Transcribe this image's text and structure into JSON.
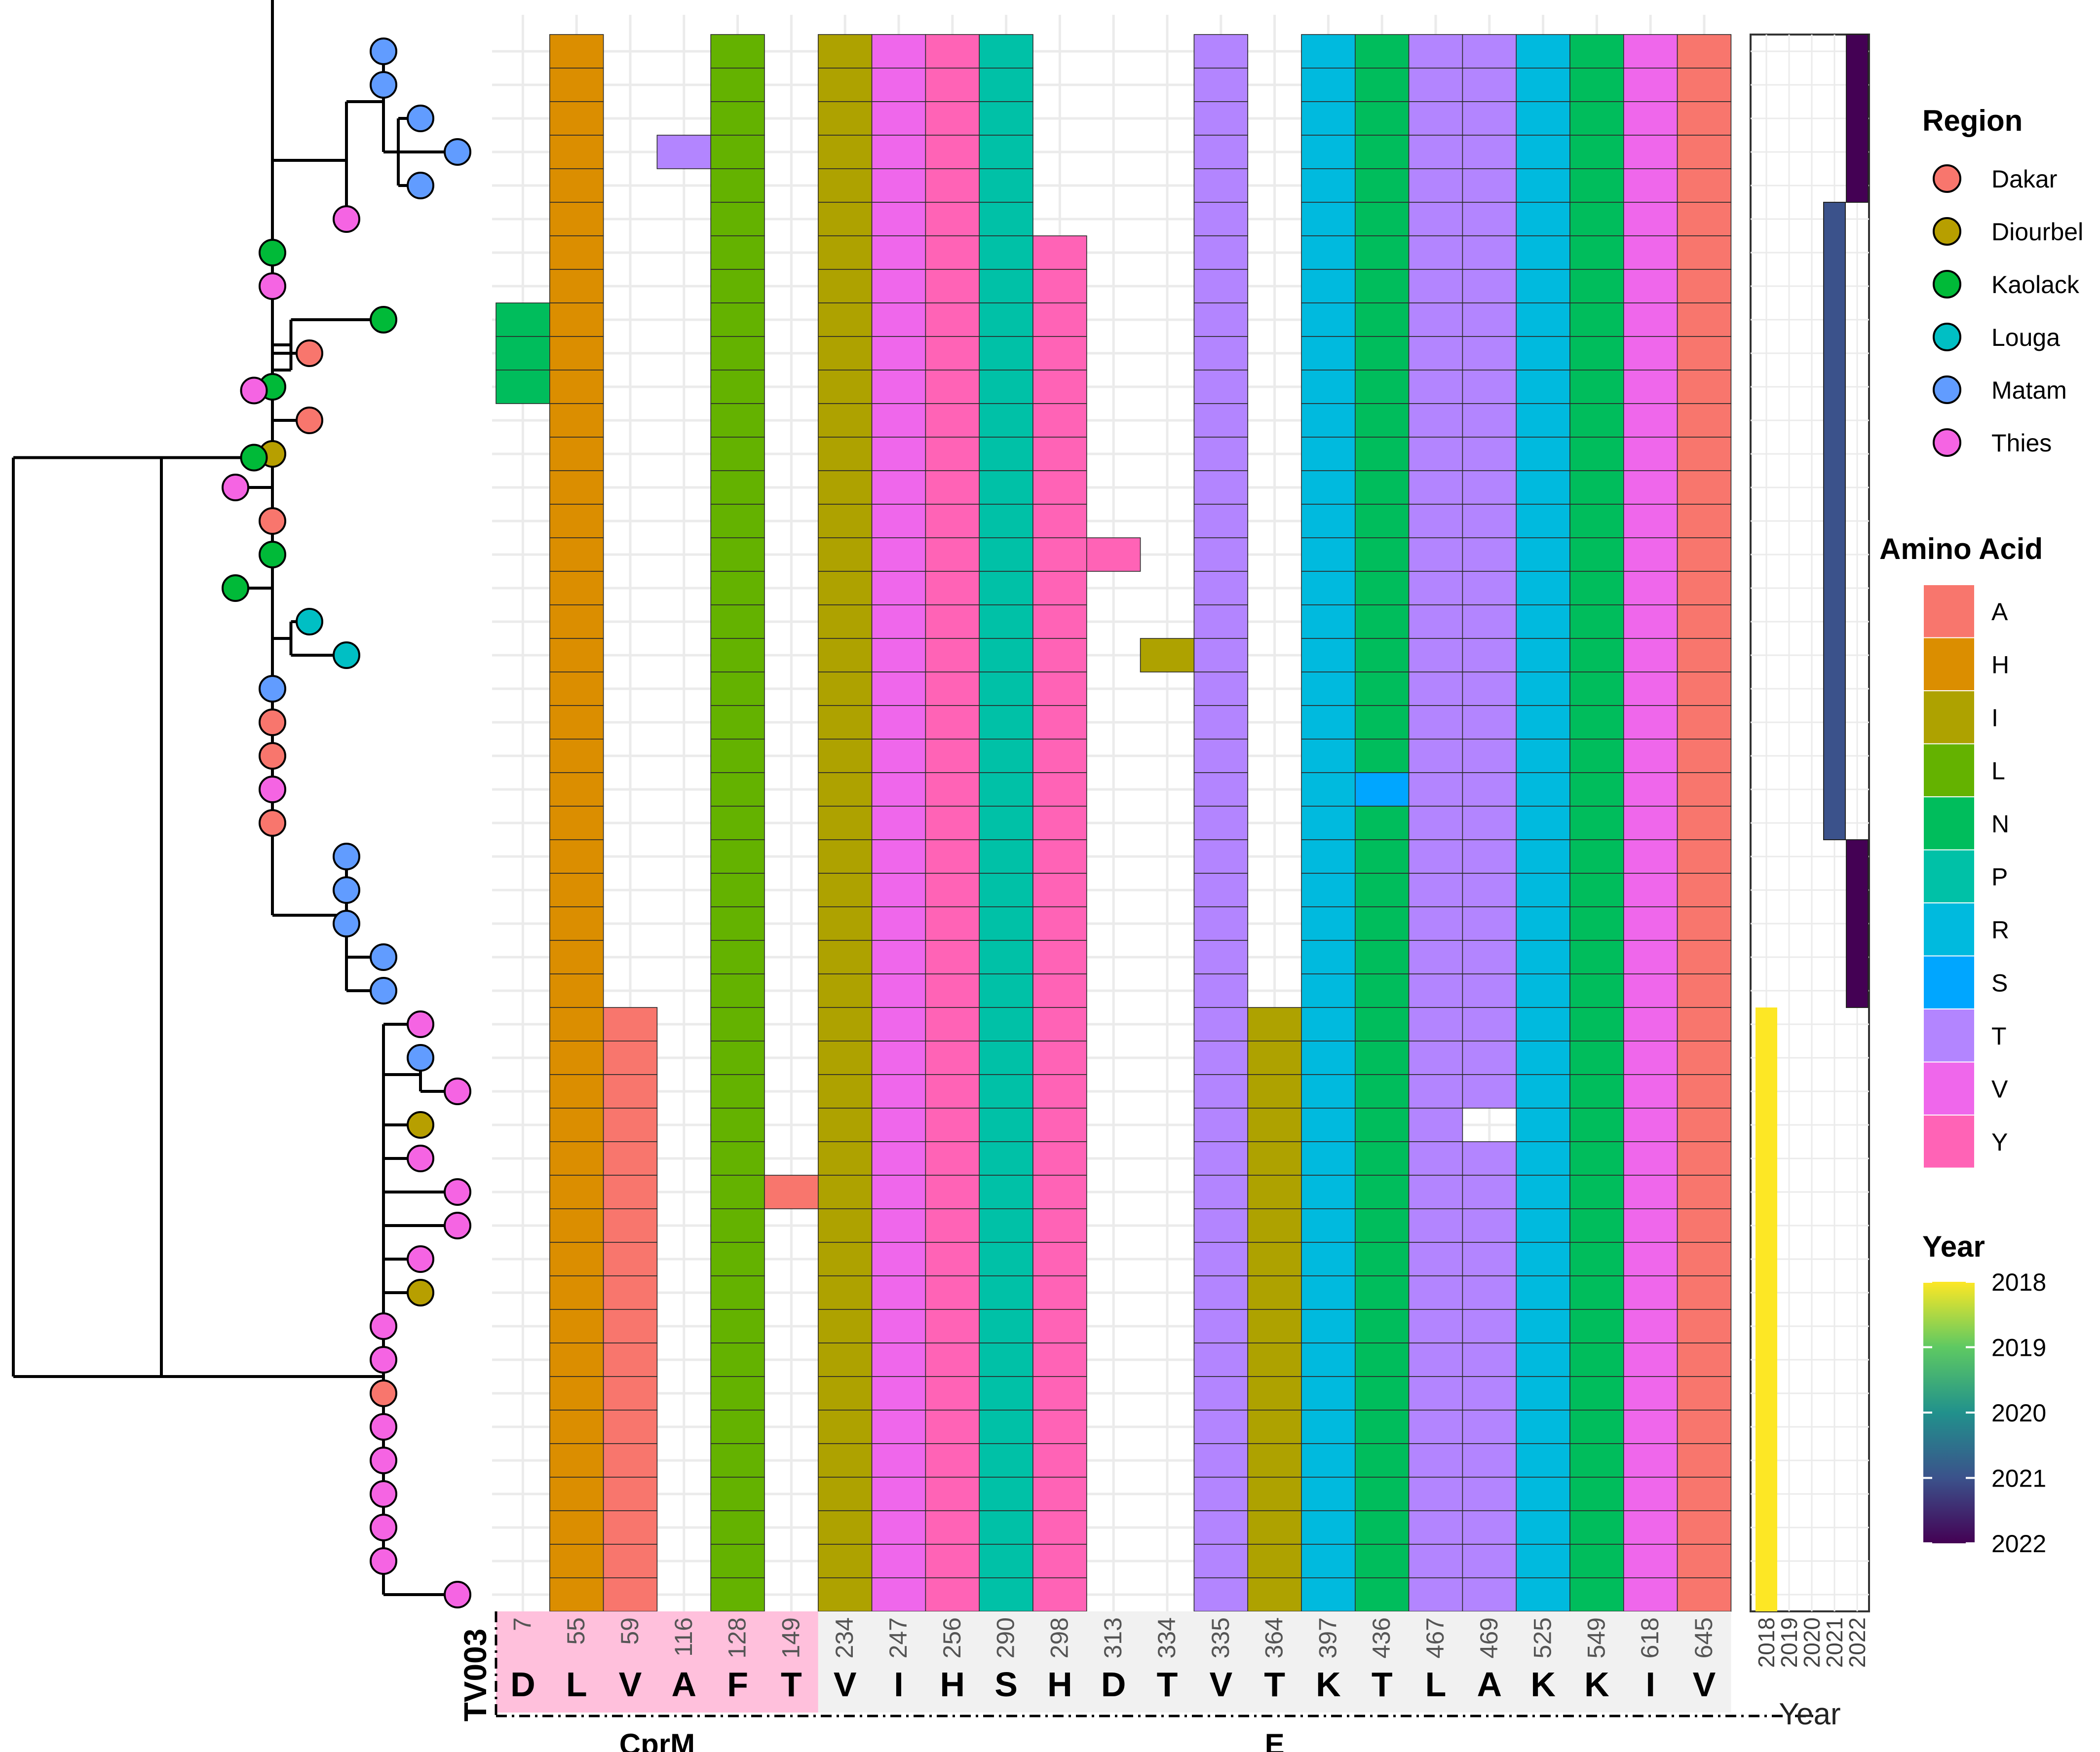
{
  "chart_data": {
    "type": "heatmap",
    "title": "",
    "reference_label": "TV003",
    "positions": [
      "7",
      "55",
      "59",
      "116",
      "128",
      "149",
      "234",
      "247",
      "256",
      "290",
      "298",
      "313",
      "334",
      "335",
      "364",
      "397",
      "436",
      "467",
      "469",
      "525",
      "549",
      "618",
      "645"
    ],
    "reference_residues": [
      "D",
      "L",
      "V",
      "A",
      "F",
      "T",
      "V",
      "I",
      "H",
      "S",
      "H",
      "D",
      "T",
      "V",
      "T",
      "K",
      "T",
      "L",
      "A",
      "K",
      "K",
      "I",
      "V"
    ],
    "genes": [
      {
        "name": "CprM",
        "from_column": 0,
        "to_column": 5
      },
      {
        "name": "E",
        "from_column": 6,
        "to_column": 22
      }
    ],
    "n_samples": 47,
    "amino_acid_legend": {
      "title": "Amino Acid",
      "items": [
        {
          "label": "A",
          "color": "#F8766D"
        },
        {
          "label": "H",
          "color": "#DB8E00"
        },
        {
          "label": "I",
          "color": "#AEA200"
        },
        {
          "label": "L",
          "color": "#64B200"
        },
        {
          "label": "N",
          "color": "#00BD5C"
        },
        {
          "label": "P",
          "color": "#00C1A7"
        },
        {
          "label": "R",
          "color": "#00BADE"
        },
        {
          "label": "S",
          "color": "#00A6FF"
        },
        {
          "label": "T",
          "color": "#B385FF"
        },
        {
          "label": "V",
          "color": "#EF67EB"
        },
        {
          "label": "Y",
          "color": "#FF63B6"
        }
      ]
    },
    "default_column_residues": [
      null,
      "H",
      null,
      null,
      "L",
      null,
      "I",
      "V",
      "Y",
      "P",
      "Y",
      null,
      null,
      "T",
      null,
      "R",
      "N",
      "T",
      "T",
      "R",
      "N",
      "V",
      "A"
    ],
    "column_overrides": [
      {
        "column": 2,
        "rows_from": 29,
        "rows_to": 46,
        "residue": "A"
      },
      {
        "column": 10,
        "rows_from": 0,
        "rows_to": 5,
        "residue": null
      },
      {
        "column": 14,
        "rows_from": 29,
        "rows_to": 46,
        "residue": "I"
      }
    ],
    "cell_overrides": [
      {
        "row": 3,
        "column": 3,
        "residue": "T"
      },
      {
        "row": 8,
        "column": 0,
        "residue": "N"
      },
      {
        "row": 9,
        "column": 0,
        "residue": "N"
      },
      {
        "row": 10,
        "column": 0,
        "residue": "N"
      },
      {
        "row": 15,
        "column": 11,
        "residue": "Y"
      },
      {
        "row": 18,
        "column": 12,
        "residue": "I"
      },
      {
        "row": 22,
        "column": 16,
        "residue": "S"
      },
      {
        "row": 32,
        "column": 18,
        "residue": null
      },
      {
        "row": 34,
        "column": 5,
        "residue": "A"
      }
    ],
    "region_legend": {
      "title": "Region",
      "items": [
        {
          "label": "Dakar",
          "color": "#F8766D"
        },
        {
          "label": "Diourbel",
          "color": "#B79F00"
        },
        {
          "label": "Kaolack",
          "color": "#00BA38"
        },
        {
          "label": "Louga",
          "color": "#00BFC4"
        },
        {
          "label": "Matam",
          "color": "#619CFF"
        },
        {
          "label": "Thies",
          "color": "#F564E3"
        }
      ]
    },
    "year_legend": {
      "title": "Year",
      "ticks": [
        "2018",
        "2019",
        "2020",
        "2021",
        "2022"
      ],
      "colors": [
        "#FDE725",
        "#5EC962",
        "#21918C",
        "#3B528B",
        "#440154"
      ]
    },
    "year_panel": {
      "xlabel": "Year",
      "tick_labels": [
        "2018",
        "2019",
        "2020",
        "2021",
        "2022"
      ],
      "segments": [
        {
          "rows_from": 0,
          "rows_to": 4,
          "year": 2022
        },
        {
          "rows_from": 5,
          "rows_to": 23,
          "year": 2021
        },
        {
          "rows_from": 24,
          "rows_to": 28,
          "year": 2022
        },
        {
          "rows_from": 29,
          "rows_to": 46,
          "year": 2018
        }
      ]
    },
    "tree": {
      "tips": [
        {
          "region": "Matam",
          "depth": 10
        },
        {
          "region": "Matam",
          "depth": 10
        },
        {
          "region": "Matam",
          "depth": 11
        },
        {
          "region": "Matam",
          "depth": 12
        },
        {
          "region": "Matam",
          "depth": 11
        },
        {
          "region": "Thies",
          "depth": 9
        },
        {
          "region": "Kaolack",
          "depth": 7
        },
        {
          "region": "Thies",
          "depth": 7
        },
        {
          "region": "Kaolack",
          "depth": 10
        },
        {
          "region": "Dakar",
          "depth": 8
        },
        {
          "region": "Kaolack",
          "depth": 7
        },
        {
          "region": "Dakar",
          "depth": 8
        },
        {
          "region": "Diourbel",
          "depth": 7
        },
        {
          "region": "Thies",
          "depth": 6
        },
        {
          "region": "Dakar",
          "depth": 7
        },
        {
          "region": "Kaolack",
          "depth": 7
        },
        {
          "region": "Kaolack",
          "depth": 6
        },
        {
          "region": "Louga",
          "depth": 8
        },
        {
          "region": "Louga",
          "depth": 9
        },
        {
          "region": "Matam",
          "depth": 7
        },
        {
          "region": "Dakar",
          "depth": 7
        },
        {
          "region": "Dakar",
          "depth": 7
        },
        {
          "region": "Thies",
          "depth": 7
        },
        {
          "region": "Dakar",
          "depth": 7
        },
        {
          "region": "Matam",
          "depth": 9
        },
        {
          "region": "Matam",
          "depth": 9
        },
        {
          "region": "Matam",
          "depth": 9
        },
        {
          "region": "Matam",
          "depth": 10
        },
        {
          "region": "Matam",
          "depth": 10
        },
        {
          "region": "Thies",
          "depth": 11
        },
        {
          "region": "Matam",
          "depth": 11
        },
        {
          "region": "Thies",
          "depth": 12
        },
        {
          "region": "Diourbel",
          "depth": 11
        },
        {
          "region": "Thies",
          "depth": 11
        },
        {
          "region": "Thies",
          "depth": 12
        },
        {
          "region": "Thies",
          "depth": 12
        },
        {
          "region": "Thies",
          "depth": 11
        },
        {
          "region": "Diourbel",
          "depth": 11
        },
        {
          "region": "Thies",
          "depth": 10
        },
        {
          "region": "Thies",
          "depth": 10
        },
        {
          "region": "Dakar",
          "depth": 10
        },
        {
          "region": "Thies",
          "depth": 10
        },
        {
          "region": "Thies",
          "depth": 10
        },
        {
          "region": "Thies",
          "depth": 10
        },
        {
          "region": "Thies",
          "depth": 10
        },
        {
          "region": "Thies",
          "depth": 10
        },
        {
          "region": "Thies",
          "depth": 12
        }
      ]
    }
  }
}
